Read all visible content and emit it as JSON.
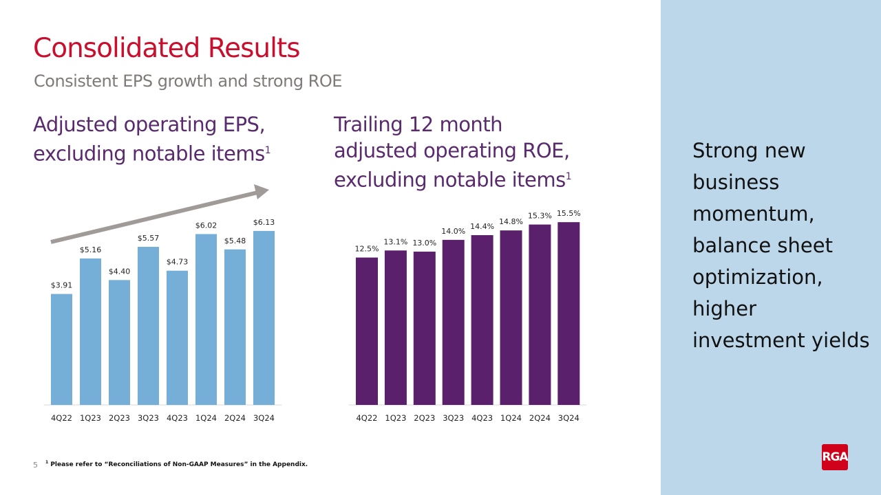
{
  "title": "Consolidated Results",
  "subtitle": "Consistent EPS growth and strong ROE",
  "side_text": "Strong new business momentum, balance sheet optimization, higher investment yields",
  "logo_text": "RGA",
  "page_number": "5",
  "footnote": "Please refer to “Reconciliations  of Non-GAAP Measures” in the Appendix.",
  "footnote_mark": "1",
  "colors": {
    "title": "#c8102e",
    "eps_bars": "#75aed6",
    "roe_bars": "#5a206c",
    "side_panel": "#bdd7ea",
    "arrow": "#a09a98"
  },
  "chart_data": [
    {
      "type": "bar",
      "title_lines": [
        "Adjusted operating EPS,",
        "excluding notable items"
      ],
      "title_sup": "1",
      "categories": [
        "4Q22",
        "1Q23",
        "2Q23",
        "3Q23",
        "4Q23",
        "1Q24",
        "2Q24",
        "3Q24"
      ],
      "values": [
        3.91,
        5.16,
        4.4,
        5.57,
        4.73,
        6.02,
        5.48,
        6.13
      ],
      "labels": [
        "$3.91",
        "$5.16",
        "$4.40",
        "$5.57",
        "$4.73",
        "$6.02",
        "$5.48",
        "$6.13"
      ],
      "ylim": [
        0,
        7
      ],
      "grid": false,
      "trend_arrow": true
    },
    {
      "type": "bar",
      "title_lines": [
        "Trailing 12 month",
        "adjusted operating ROE,",
        "excluding notable items"
      ],
      "title_sup": "1",
      "categories": [
        "4Q22",
        "1Q23",
        "2Q23",
        "3Q23",
        "4Q23",
        "1Q24",
        "2Q24",
        "3Q24"
      ],
      "values": [
        12.5,
        13.1,
        13.0,
        14.0,
        14.4,
        14.8,
        15.3,
        15.5
      ],
      "labels": [
        "12.5%",
        "13.1%",
        "13.0%",
        "14.0%",
        "14.4%",
        "14.8%",
        "15.3%",
        "15.5%"
      ],
      "ylim": [
        0,
        16.85
      ],
      "grid": false
    }
  ]
}
